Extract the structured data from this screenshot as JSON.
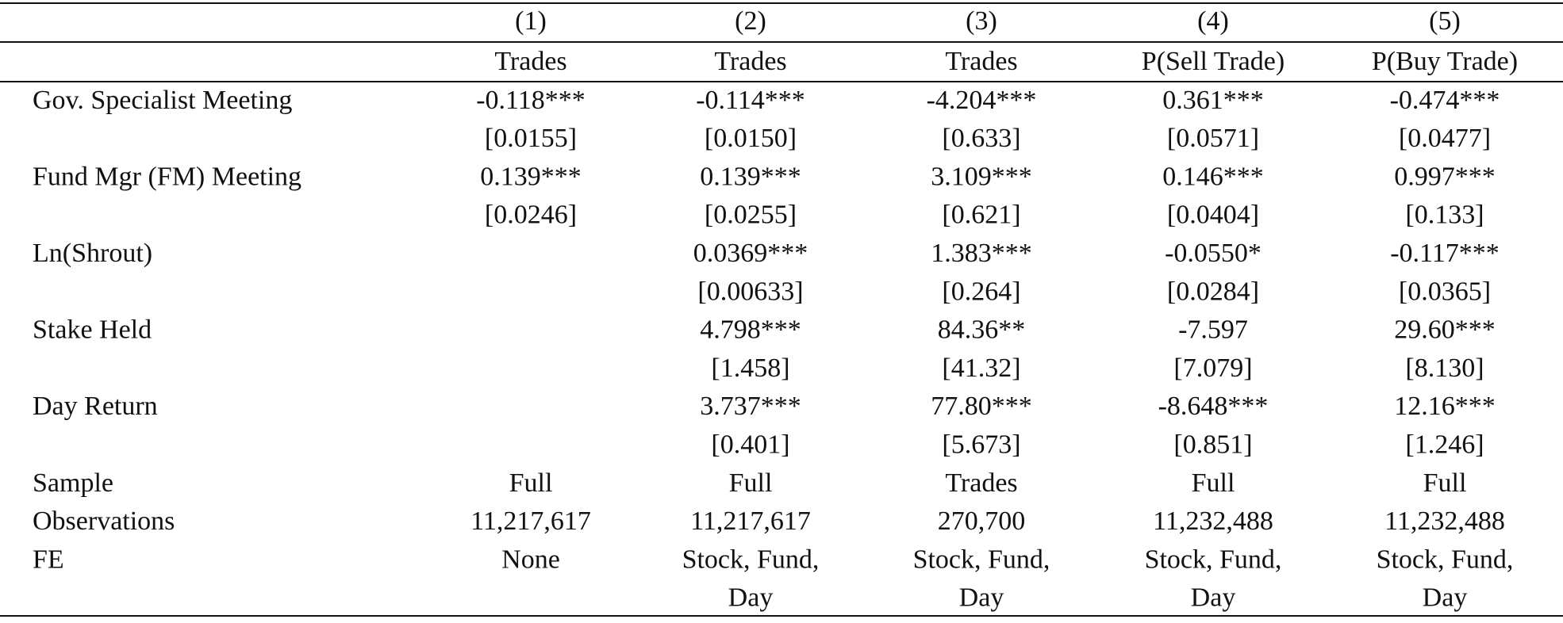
{
  "table": {
    "column_numbers": [
      "(1)",
      "(2)",
      "(3)",
      "(4)",
      "(5)"
    ],
    "column_names": [
      "Trades",
      "Trades",
      "Trades",
      "P(Sell Trade)",
      "P(Buy Trade)"
    ],
    "coefficient_rows": [
      {
        "label": "Gov. Specialist Meeting",
        "estimates": [
          "-0.118***",
          "-0.114***",
          "-4.204***",
          "0.361***",
          "-0.474***"
        ],
        "std_errors": [
          "[0.0155]",
          "[0.0150]",
          "[0.633]",
          "[0.0571]",
          "[0.0477]"
        ]
      },
      {
        "label": "Fund Mgr (FM) Meeting",
        "estimates": [
          "0.139***",
          "0.139***",
          "3.109***",
          "0.146***",
          "0.997***"
        ],
        "std_errors": [
          "[0.0246]",
          "[0.0255]",
          "[0.621]",
          "[0.0404]",
          "[0.133]"
        ]
      },
      {
        "label": "Ln(Shrout)",
        "estimates": [
          null,
          "0.0369***",
          "1.383***",
          "-0.0550*",
          "-0.117***"
        ],
        "std_errors": [
          null,
          "[0.00633]",
          "[0.264]",
          "[0.0284]",
          "[0.0365]"
        ]
      },
      {
        "label": "Stake Held",
        "estimates": [
          null,
          "4.798***",
          "84.36**",
          "-7.597",
          "29.60***"
        ],
        "std_errors": [
          null,
          "[1.458]",
          "[41.32]",
          "[7.079]",
          "[8.130]"
        ]
      },
      {
        "label": "Day Return",
        "estimates": [
          null,
          "3.737***",
          "77.80***",
          "-8.648***",
          "12.16***"
        ],
        "std_errors": [
          null,
          "[0.401]",
          "[5.673]",
          "[0.851]",
          "[1.246]"
        ]
      }
    ],
    "footer_rows": [
      {
        "label": "Sample",
        "values": [
          [
            "Full"
          ],
          [
            "Full"
          ],
          [
            "Trades"
          ],
          [
            "Full"
          ],
          [
            "Full"
          ]
        ]
      },
      {
        "label": "Observations",
        "values": [
          [
            "11,217,617"
          ],
          [
            "11,217,617"
          ],
          [
            "270,700"
          ],
          [
            "11,232,488"
          ],
          [
            "11,232,488"
          ]
        ]
      },
      {
        "label": "FE",
        "values": [
          [
            "None"
          ],
          [
            "Stock, Fund,",
            "Day"
          ],
          [
            "Stock, Fund,",
            "Day"
          ],
          [
            "Stock, Fund,",
            "Day"
          ],
          [
            "Stock, Fund,",
            "Day"
          ]
        ]
      }
    ]
  }
}
